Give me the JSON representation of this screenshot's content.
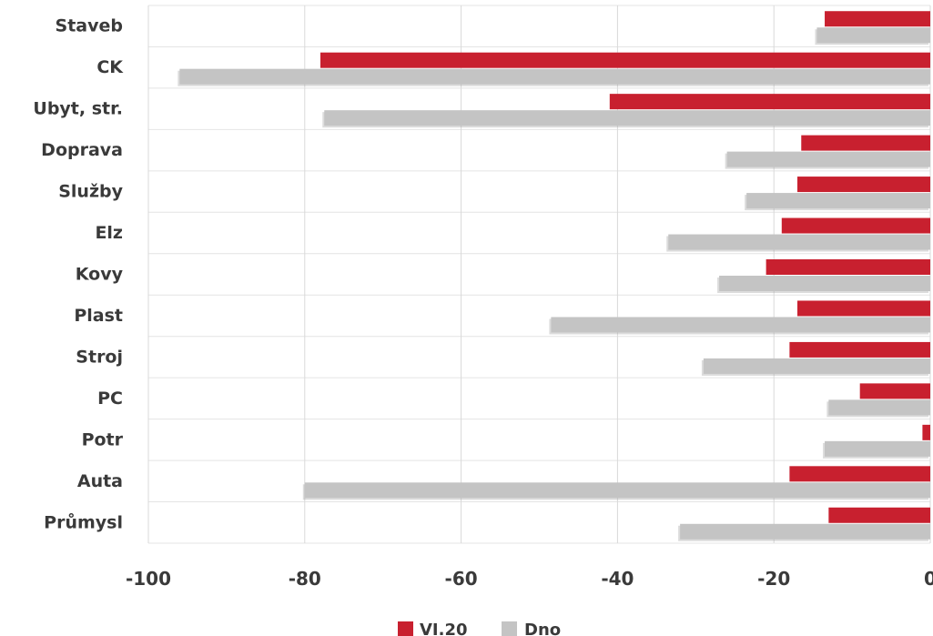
{
  "chart_data": {
    "type": "bar",
    "orientation": "horizontal",
    "categories": [
      "Staveb",
      "CK",
      "Ubyt, str.",
      "Doprava",
      "Služby",
      "Elz",
      "Kovy",
      "Plast",
      "Stroj",
      "PC",
      "Potr",
      "Auta",
      "Průmysl"
    ],
    "series": [
      {
        "name": "VI.20",
        "color": "#c8202f",
        "values": [
          -13.5,
          -78,
          -41,
          -16.5,
          -17,
          -19,
          -21,
          -17,
          -18,
          -9,
          -1,
          -18,
          -13
        ]
      },
      {
        "name": "Dno",
        "color": "#c4c4c4",
        "values": [
          -14.5,
          -96,
          -77.5,
          -26,
          -23.5,
          -33.5,
          -27,
          -48.5,
          -29,
          -13,
          -13.5,
          -80,
          -32
        ]
      }
    ],
    "xlim": [
      -100,
      0
    ],
    "xticks": [
      "-100",
      "-80",
      "-60",
      "-40",
      "-20",
      "0"
    ],
    "grid": true,
    "legend_position": "bottom"
  }
}
